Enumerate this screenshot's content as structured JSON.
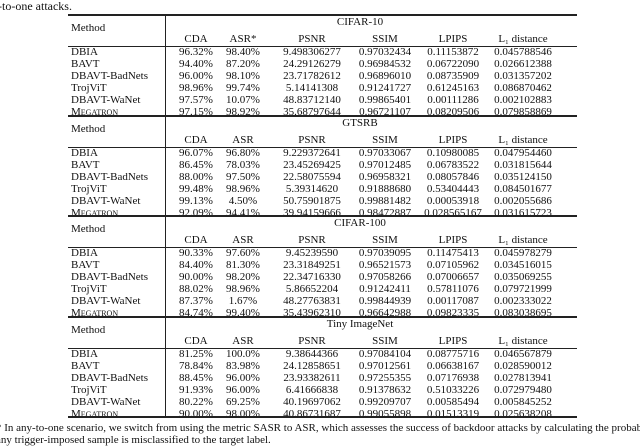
{
  "caption": "-to-one attacks.",
  "method_label": "Method",
  "columns": [
    "CDA",
    "ASR",
    "PSNR",
    "SSIM",
    "LPIPS",
    "L₁ distance"
  ],
  "blocks": [
    {
      "dataset": "CIFAR-10",
      "asr_label": "ASR*",
      "rows": [
        [
          "DBIA",
          "96.32%",
          "98.40%",
          "9.498306277",
          "0.97032434",
          "0.11153872",
          "0.045788546"
        ],
        [
          "BAVT",
          "94.40%",
          "87.20%",
          "24.29126279",
          "0.96984532",
          "0.06722090",
          "0.026612388"
        ],
        [
          "DBAVT-BadNets",
          "96.00%",
          "98.10%",
          "23.71782612",
          "0.96896010",
          "0.08735909",
          "0.031357202"
        ],
        [
          "TrojViT",
          "98.96%",
          "99.74%",
          "5.14141308",
          "0.91241727",
          "0.61245163",
          "0.086870462"
        ],
        [
          "DBAVT-WaNet",
          "97.57%",
          "10.07%",
          "48.83712140",
          "0.99865401",
          "0.00111286",
          "0.002102883"
        ],
        [
          "Megatron",
          "97.15%",
          "98.92%",
          "35.68797644",
          "0.96721107",
          "0.08209506",
          "0.079858869"
        ]
      ]
    },
    {
      "dataset": "GTSRB",
      "asr_label": "ASR",
      "rows": [
        [
          "DBIA",
          "96.07%",
          "96.80%",
          "9.229372641",
          "0.97033067",
          "0.10980085",
          "0.047954460"
        ],
        [
          "BAVT",
          "86.45%",
          "78.03%",
          "23.45269425",
          "0.97012485",
          "0.06783522",
          "0.031815644"
        ],
        [
          "DBAVT-BadNets",
          "88.00%",
          "97.50%",
          "22.58075594",
          "0.96958321",
          "0.08057846",
          "0.035124150"
        ],
        [
          "TrojViT",
          "99.48%",
          "98.96%",
          "5.39314620",
          "0.91888680",
          "0.53404443",
          "0.084501677"
        ],
        [
          "DBAVT-WaNet",
          "99.13%",
          "4.50%",
          "50.75901875",
          "0.99881482",
          "0.00053918",
          "0.002055686"
        ],
        [
          "Megatron",
          "92.09%",
          "94.41%",
          "39.94159666",
          "0.98472887",
          "0.028565167",
          "0.031615723"
        ]
      ]
    },
    {
      "dataset": "CIFAR-100",
      "asr_label": "ASR",
      "rows": [
        [
          "DBIA",
          "90.33%",
          "97.60%",
          "9.45239590",
          "0.97039095",
          "0.11475413",
          "0.045978279"
        ],
        [
          "BAVT",
          "84.40%",
          "81.30%",
          "23.31849251",
          "0.96521573",
          "0.07105962",
          "0.034516015"
        ],
        [
          "DBAVT-BadNets",
          "90.00%",
          "98.20%",
          "22.34716330",
          "0.97058266",
          "0.07006657",
          "0.035069255"
        ],
        [
          "TrojViT",
          "88.02%",
          "98.96%",
          "5.86652204",
          "0.91242411",
          "0.57811076",
          "0.079721999"
        ],
        [
          "DBAVT-WaNet",
          "87.37%",
          "1.67%",
          "48.27763831",
          "0.99844939",
          "0.00117087",
          "0.002333022"
        ],
        [
          "Megatron",
          "84.74%",
          "99.40%",
          "35.43962310",
          "0.96642988",
          "0.09823335",
          "0.083038695"
        ]
      ]
    },
    {
      "dataset": "Tiny ImageNet",
      "asr_label": "ASR",
      "rows": [
        [
          "DBIA",
          "81.25%",
          "100.0%",
          "9.38644366",
          "0.97084104",
          "0.08775716",
          "0.046567879"
        ],
        [
          "BAVT",
          "78.84%",
          "83.98%",
          "24.12858651",
          "0.97012561",
          "0.06638167",
          "0.028590012"
        ],
        [
          "DBAVT-BadNets",
          "88.45%",
          "96.00%",
          "23.93382611",
          "0.97255355",
          "0.07176938",
          "0.027813941"
        ],
        [
          "TrojViT",
          "91.93%",
          "96.00%",
          "6.41666838",
          "0.91378632",
          "0.51033226",
          "0.072979480"
        ],
        [
          "DBAVT-WaNet",
          "80.22%",
          "69.25%",
          "40.19697062",
          "0.99209707",
          "0.00585494",
          "0.005845252"
        ],
        [
          "Megatron",
          "90.00%",
          "98.00%",
          "40.86731687",
          "0.99055898",
          "0.01513319",
          "0.025638208"
        ]
      ]
    }
  ],
  "footnote": [
    "* In any-to-one scenario, we switch from using the metric SASR to ASR, which assesses the success of backdoor attacks by calculating the probability",
    "any trigger-imposed sample is misclassified to the target label."
  ]
}
